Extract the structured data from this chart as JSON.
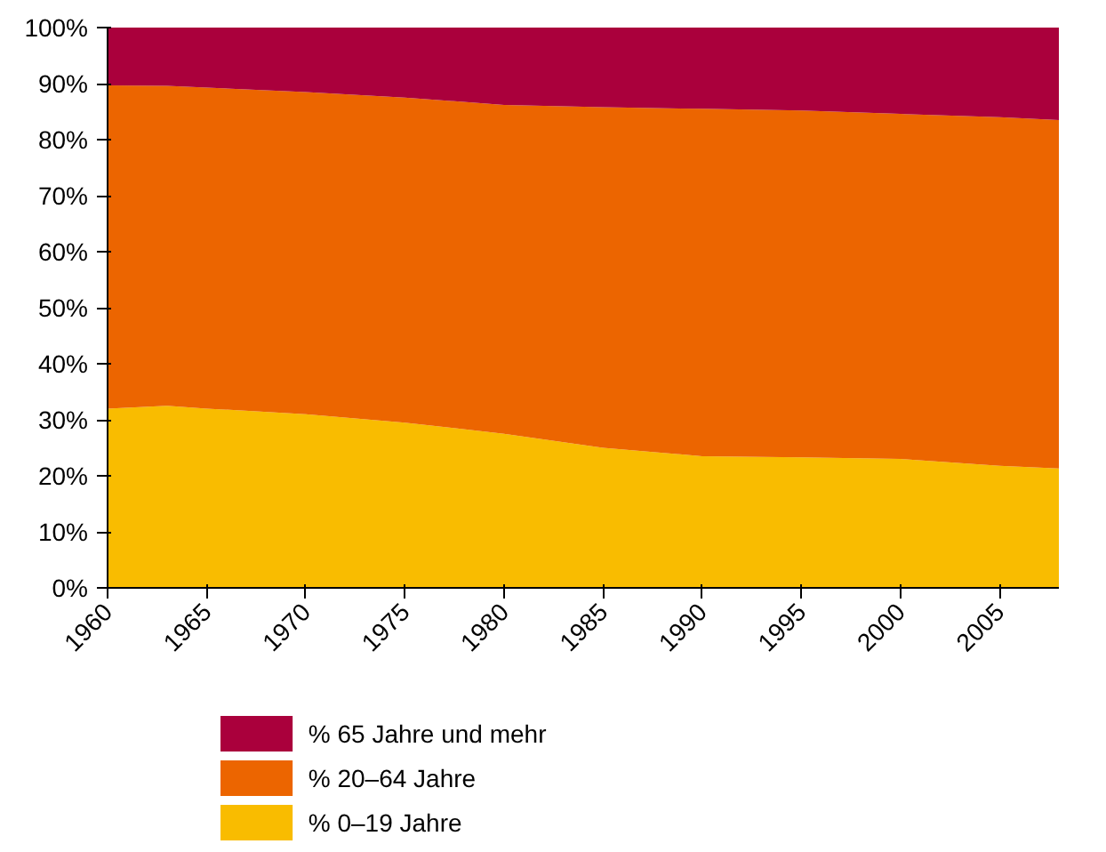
{
  "chart_data": {
    "type": "area",
    "stacked": true,
    "legend": "bottom",
    "grid": false,
    "x": [
      1960,
      1963,
      1965,
      1970,
      1975,
      1980,
      1985,
      1990,
      1995,
      2000,
      2005,
      2008
    ],
    "xlim": [
      1960,
      2008
    ],
    "xticks": [
      1960,
      1965,
      1970,
      1975,
      1980,
      1985,
      1990,
      1995,
      2000,
      2005
    ],
    "ylim": [
      0,
      100
    ],
    "yticks": [
      {
        "value": 0,
        "label": "0%"
      },
      {
        "value": 10,
        "label": "10%"
      },
      {
        "value": 20,
        "label": "20%"
      },
      {
        "value": 30,
        "label": "30%"
      },
      {
        "value": 40,
        "label": "40%"
      },
      {
        "value": 50,
        "label": "50%"
      },
      {
        "value": 60,
        "label": "60%"
      },
      {
        "value": 70,
        "label": "70%"
      },
      {
        "value": 80,
        "label": "80%"
      },
      {
        "value": 90,
        "label": "90%"
      },
      {
        "value": 100,
        "label": "100%"
      }
    ],
    "series": [
      {
        "name": "% 0–19 Jahre",
        "color": "#f9bc00",
        "values": [
          32,
          32.5,
          32,
          31,
          29.5,
          27.5,
          25,
          23.5,
          23.3,
          23,
          21.8,
          21.3
        ]
      },
      {
        "name": "% 20–64 Jahre",
        "color": "#ec6500",
        "values": [
          57.7,
          57.1,
          57.3,
          57.5,
          58,
          58.7,
          60.8,
          62,
          61.9,
          61.6,
          62.2,
          62.2
        ]
      },
      {
        "name": "% 65 Jahre und mehr",
        "color": "#aa003c",
        "values": [
          10.3,
          10.4,
          10.7,
          11.5,
          12.5,
          13.8,
          14.2,
          14.5,
          14.8,
          15.4,
          16,
          16.5
        ]
      }
    ]
  }
}
